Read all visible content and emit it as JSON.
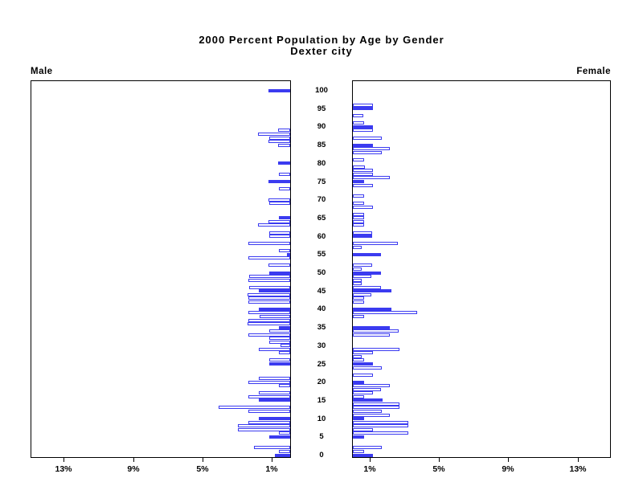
{
  "title": {
    "line1": "2000 Percent Population by Age by Gender",
    "line2": "Dexter city"
  },
  "panels": {
    "male_label": "Male",
    "female_label": "Female"
  },
  "axes": {
    "age_tick_labels": [
      "0",
      "5",
      "10",
      "15",
      "20",
      "25",
      "30",
      "35",
      "40",
      "45",
      "50",
      "55",
      "60",
      "65",
      "70",
      "75",
      "80",
      "85",
      "90",
      "95",
      "100"
    ],
    "male_pct_ticks": [
      {
        "label": "13%",
        "value": 13
      },
      {
        "label": "9%",
        "value": 9
      },
      {
        "label": "5%",
        "value": 5
      },
      {
        "label": "1%",
        "value": 1
      }
    ],
    "female_pct_ticks": [
      {
        "label": "1%",
        "value": 1
      },
      {
        "label": "5%",
        "value": 5
      },
      {
        "label": "9%",
        "value": 9
      },
      {
        "label": "13%",
        "value": 13
      }
    ]
  },
  "colors": {
    "bar_blue": "#3b3bf0",
    "axis_black": "#000000",
    "background": "#ffffff"
  },
  "chart_data": {
    "type": "bar",
    "variant": "population-pyramid",
    "title": "2000 Percent Population by Age by Gender",
    "subtitle": "Dexter city",
    "unit": "percent of total population",
    "age_axis": {
      "min": 0,
      "max": 100,
      "tick_step": 5
    },
    "pct_axis": {
      "min": 0,
      "max": 15,
      "ticks": [
        1,
        5,
        9,
        13
      ]
    },
    "legend": "solid bars at 5-year ages, hollow bars for single years",
    "series": [
      {
        "name": "Male",
        "side": "left",
        "bars": [
          {
            "age": 0,
            "value": 0.9,
            "fill": "solid"
          },
          {
            "age": 1,
            "value": 0.65,
            "fill": "hollow"
          },
          {
            "age": 2,
            "value": 2.1,
            "fill": "hollow"
          },
          {
            "age": 5,
            "value": 1.2,
            "fill": "solid"
          },
          {
            "age": 6,
            "value": 0.65,
            "fill": "hollow"
          },
          {
            "age": 7,
            "value": 3.0,
            "fill": "hollow"
          },
          {
            "age": 8,
            "value": 3.0,
            "fill": "hollow"
          },
          {
            "age": 9,
            "value": 2.4,
            "fill": "hollow"
          },
          {
            "age": 10,
            "value": 1.8,
            "fill": "solid"
          },
          {
            "age": 12,
            "value": 2.4,
            "fill": "hollow"
          },
          {
            "age": 13,
            "value": 4.1,
            "fill": "hollow"
          },
          {
            "age": 15,
            "value": 1.8,
            "fill": "solid"
          },
          {
            "age": 16,
            "value": 2.4,
            "fill": "hollow"
          },
          {
            "age": 17,
            "value": 1.8,
            "fill": "hollow"
          },
          {
            "age": 19,
            "value": 0.65,
            "fill": "hollow"
          },
          {
            "age": 20,
            "value": 2.4,
            "fill": "hollow"
          },
          {
            "age": 21,
            "value": 1.8,
            "fill": "hollow"
          },
          {
            "age": 25,
            "value": 1.2,
            "fill": "solid"
          },
          {
            "age": 26,
            "value": 1.2,
            "fill": "hollow"
          },
          {
            "age": 28,
            "value": 0.65,
            "fill": "hollow"
          },
          {
            "age": 29,
            "value": 1.8,
            "fill": "hollow"
          },
          {
            "age": 30,
            "value": 0.55,
            "fill": "hollow"
          },
          {
            "age": 31,
            "value": 1.2,
            "fill": "hollow"
          },
          {
            "age": 32,
            "value": 1.2,
            "fill": "hollow"
          },
          {
            "age": 33,
            "value": 2.4,
            "fill": "hollow"
          },
          {
            "age": 34,
            "value": 1.2,
            "fill": "hollow"
          },
          {
            "age": 35,
            "value": 0.65,
            "fill": "solid"
          },
          {
            "age": 36,
            "value": 2.45,
            "fill": "hollow"
          },
          {
            "age": 37,
            "value": 2.4,
            "fill": "hollow"
          },
          {
            "age": 38,
            "value": 1.75,
            "fill": "hollow"
          },
          {
            "age": 39,
            "value": 2.4,
            "fill": "hollow"
          },
          {
            "age": 40,
            "value": 1.8,
            "fill": "solid"
          },
          {
            "age": 42,
            "value": 2.4,
            "fill": "hollow"
          },
          {
            "age": 43,
            "value": 2.4,
            "fill": "hollow"
          },
          {
            "age": 44,
            "value": 2.45,
            "fill": "hollow"
          },
          {
            "age": 45,
            "value": 1.8,
            "fill": "solid"
          },
          {
            "age": 46,
            "value": 2.35,
            "fill": "hollow"
          },
          {
            "age": 48,
            "value": 2.4,
            "fill": "hollow"
          },
          {
            "age": 49,
            "value": 2.35,
            "fill": "hollow"
          },
          {
            "age": 50,
            "value": 1.2,
            "fill": "solid"
          },
          {
            "age": 52,
            "value": 1.25,
            "fill": "hollow"
          },
          {
            "age": 54,
            "value": 2.4,
            "fill": "hollow"
          },
          {
            "age": 55,
            "value": 0.2,
            "fill": "solid"
          },
          {
            "age": 56,
            "value": 0.65,
            "fill": "hollow"
          },
          {
            "age": 58,
            "value": 2.4,
            "fill": "hollow"
          },
          {
            "age": 60,
            "value": 1.2,
            "fill": "hollow"
          },
          {
            "age": 61,
            "value": 1.2,
            "fill": "hollow"
          },
          {
            "age": 63,
            "value": 1.85,
            "fill": "hollow"
          },
          {
            "age": 64,
            "value": 1.25,
            "fill": "hollow"
          },
          {
            "age": 65,
            "value": 0.65,
            "fill": "solid"
          },
          {
            "age": 69,
            "value": 1.2,
            "fill": "hollow"
          },
          {
            "age": 70,
            "value": 1.25,
            "fill": "hollow"
          },
          {
            "age": 73,
            "value": 0.65,
            "fill": "hollow"
          },
          {
            "age": 75,
            "value": 1.25,
            "fill": "solid"
          },
          {
            "age": 77,
            "value": 0.65,
            "fill": "hollow"
          },
          {
            "age": 80,
            "value": 0.7,
            "fill": "solid"
          },
          {
            "age": 85,
            "value": 0.7,
            "fill": "hollow"
          },
          {
            "age": 86,
            "value": 1.25,
            "fill": "hollow"
          },
          {
            "age": 87,
            "value": 1.2,
            "fill": "hollow"
          },
          {
            "age": 88,
            "value": 1.85,
            "fill": "hollow"
          },
          {
            "age": 89,
            "value": 0.7,
            "fill": "hollow"
          },
          {
            "age": 100,
            "value": 1.25,
            "fill": "solid"
          }
        ]
      },
      {
        "name": "Female",
        "side": "right",
        "bars": [
          {
            "age": 0,
            "value": 1.15,
            "fill": "solid"
          },
          {
            "age": 1,
            "value": 0.65,
            "fill": "hollow"
          },
          {
            "age": 2,
            "value": 1.65,
            "fill": "hollow"
          },
          {
            "age": 5,
            "value": 0.65,
            "fill": "solid"
          },
          {
            "age": 6,
            "value": 3.2,
            "fill": "hollow"
          },
          {
            "age": 7,
            "value": 1.15,
            "fill": "hollow"
          },
          {
            "age": 8,
            "value": 3.2,
            "fill": "hollow"
          },
          {
            "age": 9,
            "value": 3.2,
            "fill": "hollow"
          },
          {
            "age": 10,
            "value": 0.65,
            "fill": "solid"
          },
          {
            "age": 11,
            "value": 2.15,
            "fill": "hollow"
          },
          {
            "age": 12,
            "value": 1.65,
            "fill": "hollow"
          },
          {
            "age": 13,
            "value": 2.7,
            "fill": "hollow"
          },
          {
            "age": 14,
            "value": 2.7,
            "fill": "hollow"
          },
          {
            "age": 15,
            "value": 1.7,
            "fill": "solid"
          },
          {
            "age": 16,
            "value": 0.65,
            "fill": "hollow"
          },
          {
            "age": 17,
            "value": 1.15,
            "fill": "hollow"
          },
          {
            "age": 18,
            "value": 1.6,
            "fill": "hollow"
          },
          {
            "age": 19,
            "value": 2.15,
            "fill": "hollow"
          },
          {
            "age": 20,
            "value": 0.65,
            "fill": "solid"
          },
          {
            "age": 22,
            "value": 1.15,
            "fill": "hollow"
          },
          {
            "age": 24,
            "value": 1.65,
            "fill": "hollow"
          },
          {
            "age": 25,
            "value": 1.15,
            "fill": "solid"
          },
          {
            "age": 26,
            "value": 0.65,
            "fill": "hollow"
          },
          {
            "age": 27,
            "value": 0.5,
            "fill": "hollow"
          },
          {
            "age": 28,
            "value": 1.15,
            "fill": "hollow"
          },
          {
            "age": 29,
            "value": 2.7,
            "fill": "hollow"
          },
          {
            "age": 33,
            "value": 2.15,
            "fill": "hollow"
          },
          {
            "age": 34,
            "value": 2.65,
            "fill": "hollow"
          },
          {
            "age": 35,
            "value": 2.15,
            "fill": "solid"
          },
          {
            "age": 38,
            "value": 0.65,
            "fill": "hollow"
          },
          {
            "age": 39,
            "value": 3.7,
            "fill": "hollow"
          },
          {
            "age": 40,
            "value": 2.2,
            "fill": "solid"
          },
          {
            "age": 42,
            "value": 0.65,
            "fill": "hollow"
          },
          {
            "age": 43,
            "value": 0.65,
            "fill": "hollow"
          },
          {
            "age": 44,
            "value": 1.05,
            "fill": "hollow"
          },
          {
            "age": 45,
            "value": 2.2,
            "fill": "solid"
          },
          {
            "age": 46,
            "value": 1.6,
            "fill": "hollow"
          },
          {
            "age": 47,
            "value": 0.5,
            "fill": "hollow"
          },
          {
            "age": 48,
            "value": 0.5,
            "fill": "hollow"
          },
          {
            "age": 49,
            "value": 1.05,
            "fill": "hollow"
          },
          {
            "age": 50,
            "value": 1.6,
            "fill": "solid"
          },
          {
            "age": 51,
            "value": 0.5,
            "fill": "hollow"
          },
          {
            "age": 52,
            "value": 1.1,
            "fill": "hollow"
          },
          {
            "age": 55,
            "value": 1.6,
            "fill": "solid"
          },
          {
            "age": 57,
            "value": 0.5,
            "fill": "hollow"
          },
          {
            "age": 58,
            "value": 2.6,
            "fill": "hollow"
          },
          {
            "age": 60,
            "value": 1.1,
            "fill": "solid"
          },
          {
            "age": 61,
            "value": 1.1,
            "fill": "hollow"
          },
          {
            "age": 63,
            "value": 0.65,
            "fill": "hollow"
          },
          {
            "age": 64,
            "value": 0.65,
            "fill": "hollow"
          },
          {
            "age": 65,
            "value": 0.65,
            "fill": "hollow"
          },
          {
            "age": 66,
            "value": 0.65,
            "fill": "hollow"
          },
          {
            "age": 68,
            "value": 1.15,
            "fill": "hollow"
          },
          {
            "age": 69,
            "value": 0.65,
            "fill": "hollow"
          },
          {
            "age": 71,
            "value": 0.65,
            "fill": "hollow"
          },
          {
            "age": 74,
            "value": 1.15,
            "fill": "hollow"
          },
          {
            "age": 75,
            "value": 0.65,
            "fill": "solid"
          },
          {
            "age": 76,
            "value": 2.15,
            "fill": "hollow"
          },
          {
            "age": 77,
            "value": 1.15,
            "fill": "hollow"
          },
          {
            "age": 78,
            "value": 1.15,
            "fill": "hollow"
          },
          {
            "age": 79,
            "value": 0.7,
            "fill": "hollow"
          },
          {
            "age": 81,
            "value": 0.65,
            "fill": "hollow"
          },
          {
            "age": 83,
            "value": 1.65,
            "fill": "hollow"
          },
          {
            "age": 84,
            "value": 2.15,
            "fill": "hollow"
          },
          {
            "age": 85,
            "value": 1.15,
            "fill": "solid"
          },
          {
            "age": 87,
            "value": 1.65,
            "fill": "hollow"
          },
          {
            "age": 89,
            "value": 1.15,
            "fill": "hollow"
          },
          {
            "age": 90,
            "value": 1.15,
            "fill": "solid"
          },
          {
            "age": 91,
            "value": 0.65,
            "fill": "hollow"
          },
          {
            "age": 93,
            "value": 0.6,
            "fill": "hollow"
          },
          {
            "age": 95,
            "value": 1.15,
            "fill": "solid"
          },
          {
            "age": 96,
            "value": 1.15,
            "fill": "hollow"
          }
        ]
      }
    ]
  }
}
